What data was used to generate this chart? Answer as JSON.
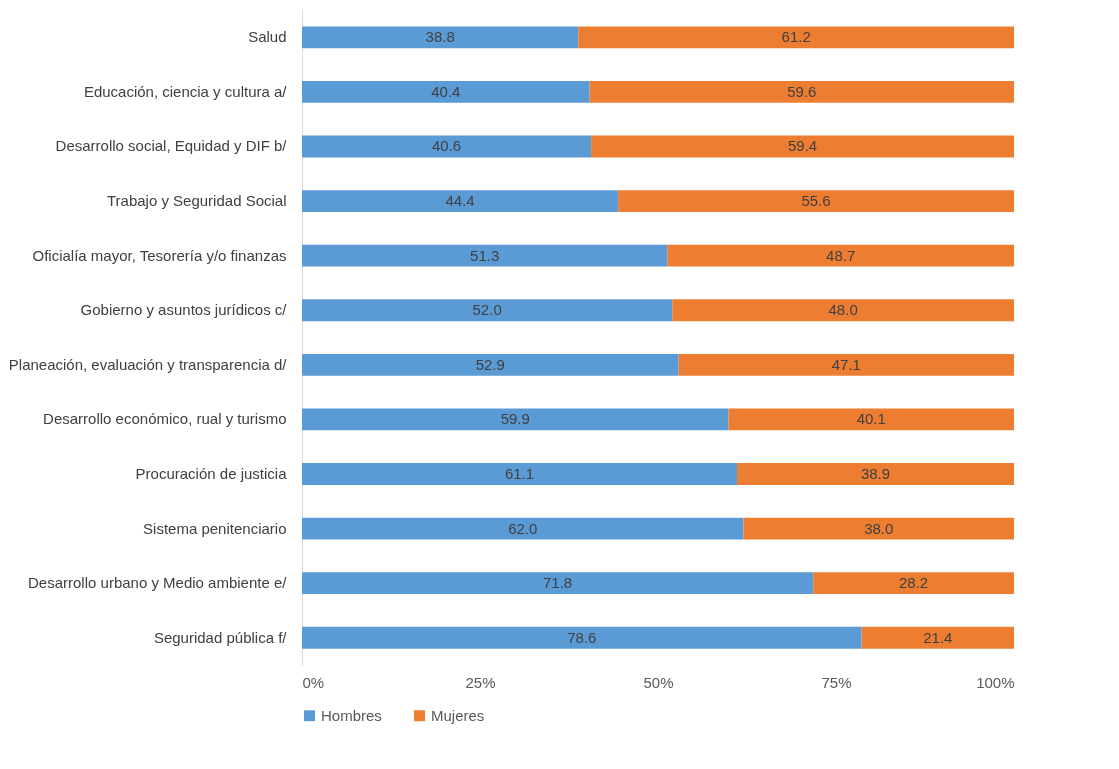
{
  "chart_data": {
    "type": "bar",
    "orientation": "horizontal",
    "stacked": true,
    "categories": [
      "Salud",
      "Educación, ciencia y cultura a/",
      "Desarrollo social, Equidad y DIF b/",
      "Trabajo y Seguridad Social",
      "Oficialía mayor, Tesorería y/o finanzas",
      "Gobierno y asuntos jurídicos c/",
      "Planeación, evaluación y transparencia d/",
      "Desarrollo económico, rual y turismo",
      "Procuración de justicia",
      "Sistema penitenciario",
      "Desarrollo urbano y Medio ambiente e/",
      "Seguridad pública f/"
    ],
    "series": [
      {
        "name": "Hombres",
        "color": "#5b9bd5",
        "values": [
          38.8,
          40.4,
          40.6,
          44.4,
          51.3,
          52.0,
          52.9,
          59.9,
          61.1,
          62.0,
          71.8,
          78.6
        ],
        "value_labels": [
          "38.8",
          "40.4",
          "40.6",
          "44.4",
          "51.3",
          "52.0",
          "52.9",
          "59.9",
          "61.1",
          "62.0",
          "71.8",
          "78.6"
        ]
      },
      {
        "name": "Mujeres",
        "color": "#ed7d31",
        "values": [
          61.2,
          59.6,
          59.4,
          55.6,
          48.7,
          48.0,
          47.1,
          40.1,
          38.9,
          38.0,
          28.2,
          21.4
        ],
        "value_labels": [
          "61.2",
          "59.6",
          "59.4",
          "55.6",
          "48.7",
          "48.0",
          "47.1",
          "40.1",
          "38.9",
          "38.0",
          "28.2",
          "21.4"
        ]
      }
    ],
    "xlim": [
      0,
      100
    ],
    "xticks": [
      {
        "value": 0,
        "label": "0%"
      },
      {
        "value": 25,
        "label": "25%"
      },
      {
        "value": 50,
        "label": "50%"
      },
      {
        "value": 75,
        "label": "75%"
      },
      {
        "value": 100,
        "label": "100%"
      }
    ],
    "grid": false,
    "legend": "bottom"
  }
}
